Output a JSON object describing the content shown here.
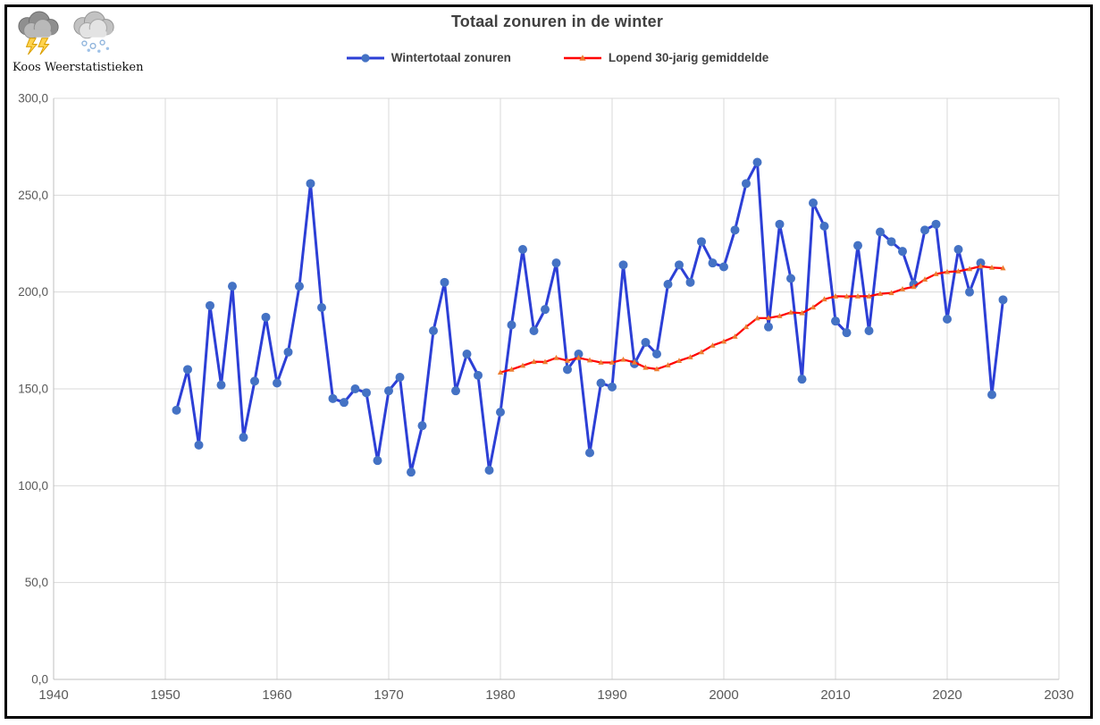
{
  "logo": {
    "text": "Koos Weerstatistieken",
    "icons": [
      "storm-cloud-icon",
      "snow-cloud-icon"
    ]
  },
  "colors": {
    "blue_line": "#2C3FD6",
    "blue_marker": "#4472C4",
    "red_line": "#FF0000",
    "red_marker": "#ED7D31",
    "title_text": "#404040",
    "tick_text": "#595959",
    "gridline": "#D9D9D9",
    "axis_line": "#BFBFBF",
    "border": "#000000"
  },
  "chart_data": {
    "type": "line",
    "title": "Totaal zonuren in de winter",
    "xlabel": "",
    "ylabel": "",
    "grid": true,
    "legend_position": "top",
    "x_axis": {
      "min": 1940,
      "max": 2030,
      "tick_step": 10,
      "tick_values": [
        1940,
        1950,
        1960,
        1970,
        1980,
        1990,
        2000,
        2010,
        2020,
        2030
      ],
      "tick_labels": [
        "1940",
        "1950",
        "1960",
        "1970",
        "1980",
        "1990",
        "2000",
        "2010",
        "2020",
        "2030"
      ]
    },
    "y_axis": {
      "min": 0,
      "max": 300,
      "tick_step": 50,
      "tick_values": [
        0,
        50,
        100,
        150,
        200,
        250,
        300
      ],
      "tick_labels": [
        "0,0",
        "50,0",
        "100,0",
        "150,0",
        "200,0",
        "250,0",
        "300,0"
      ]
    },
    "series": [
      {
        "name": "Wintertotaal zonuren",
        "marker": "circle",
        "start_year": 1951,
        "values": [
          139,
          160,
          121,
          193,
          152,
          203,
          125,
          154,
          187,
          153,
          169,
          203,
          256,
          192,
          145,
          143,
          150,
          148,
          113,
          149,
          156,
          107,
          131,
          180,
          205,
          149,
          168,
          157,
          108,
          138,
          183,
          222,
          180,
          191,
          215,
          160,
          168,
          117,
          153,
          151,
          214,
          163,
          174,
          168,
          204,
          214,
          205,
          226,
          215,
          213,
          232,
          256,
          267,
          182,
          235,
          207,
          155,
          246,
          234,
          185,
          179,
          224,
          180,
          231,
          226,
          221,
          204,
          232,
          235,
          186,
          222,
          200,
          215,
          147,
          196
        ]
      },
      {
        "name": "Lopend 30-jarig gemiddelde",
        "marker": "triangle",
        "start_year": 1980,
        "values": [
          158.5,
          160.0,
          162.0,
          164.0,
          163.9,
          166.0,
          164.6,
          166.0,
          164.8,
          163.6,
          163.6,
          165.1,
          163.7,
          161.0,
          160.2,
          162.2,
          164.5,
          166.4,
          169.0,
          172.4,
          174.5,
          177.0,
          182.0,
          186.5,
          186.6,
          187.6,
          189.5,
          189.1,
          192.1,
          196.3,
          197.8,
          197.7,
          197.8,
          197.8,
          199.1,
          199.5,
          201.5,
          202.7,
          206.5,
          209.3,
          210.4,
          210.7,
          211.9,
          213.3,
          212.6,
          212.3
        ]
      }
    ]
  }
}
